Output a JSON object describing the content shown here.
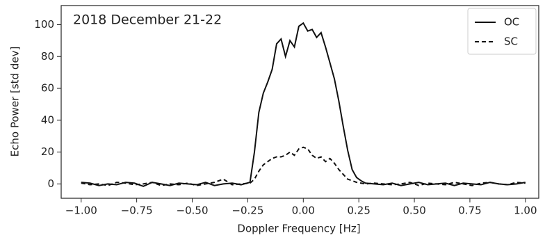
{
  "chart_data": {
    "type": "line",
    "annotation": "2018 December 21-22",
    "x_label": "Doppler Frequency [Hz]",
    "y_label": "Echo Power [std dev]",
    "x": [
      -1.0,
      -0.96,
      -0.92,
      -0.88,
      -0.84,
      -0.8,
      -0.76,
      -0.72,
      -0.68,
      -0.64,
      -0.6,
      -0.56,
      -0.52,
      -0.48,
      -0.44,
      -0.4,
      -0.36,
      -0.32,
      -0.28,
      -0.24,
      -0.22,
      -0.2,
      -0.18,
      -0.16,
      -0.14,
      -0.12,
      -0.1,
      -0.08,
      -0.06,
      -0.04,
      -0.02,
      0.0,
      0.02,
      0.04,
      0.06,
      0.08,
      0.1,
      0.12,
      0.14,
      0.16,
      0.18,
      0.2,
      0.22,
      0.24,
      0.26,
      0.28,
      0.32,
      0.36,
      0.4,
      0.44,
      0.48,
      0.52,
      0.56,
      0.6,
      0.64,
      0.68,
      0.72,
      0.76,
      0.8,
      0.84,
      0.88,
      0.92,
      0.96,
      1.0
    ],
    "series": [
      {
        "name": "OC",
        "color": "#111111",
        "dash": "solid",
        "values": [
          1,
          0.5,
          -1,
          0,
          -0.5,
          1,
          0.5,
          -1.5,
          1,
          0,
          -1,
          0.5,
          0,
          -0.5,
          1,
          -1,
          0,
          0.5,
          -0.5,
          1,
          20,
          45,
          57,
          64,
          72,
          88,
          91,
          80,
          90,
          86,
          99,
          101,
          96,
          97,
          92,
          95,
          86,
          76,
          66,
          52,
          36,
          21,
          9,
          4,
          2,
          0.5,
          0,
          -0.5,
          0.5,
          -1,
          0,
          1,
          -0.5,
          0,
          0.5,
          -1,
          0.5,
          0,
          -0.5,
          1,
          0,
          -0.5,
          0,
          1
        ]
      },
      {
        "name": "SC",
        "color": "#111111",
        "dash": "dashed",
        "values": [
          0.5,
          -0.5,
          0,
          -1,
          1,
          0.5,
          -0.5,
          0,
          1,
          -1,
          0,
          -0.5,
          0.5,
          -1,
          0,
          1,
          3,
          -0.5,
          0,
          0.5,
          3,
          8,
          12,
          14,
          16,
          17,
          17,
          18,
          20,
          18,
          22,
          23,
          22,
          18,
          16,
          17,
          14,
          16,
          13,
          9,
          6,
          3,
          2,
          1,
          0.5,
          0,
          0.5,
          0,
          -0.5,
          0,
          1,
          -1,
          0.5,
          0,
          -0.5,
          1,
          0,
          -1,
          0.5,
          1,
          0,
          -0.5,
          1,
          0.5
        ]
      }
    ],
    "xlim": [
      -1.09,
      1.06
    ],
    "ylim": [
      -9,
      112
    ],
    "xticks": [
      {
        "value": -1,
        "label": "−1.00"
      },
      {
        "value": -0.75,
        "label": "−0.75"
      },
      {
        "value": -0.5,
        "label": "−0.50"
      },
      {
        "value": -0.25,
        "label": "−0.25"
      },
      {
        "value": 0,
        "label": "0.00"
      },
      {
        "value": 0.25,
        "label": "0.25"
      },
      {
        "value": 0.5,
        "label": "0.50"
      },
      {
        "value": 0.75,
        "label": "0.75"
      },
      {
        "value": 1,
        "label": "1.00"
      }
    ],
    "yticks": [
      0,
      20,
      40,
      60,
      80,
      100
    ],
    "legend": "upper right"
  }
}
